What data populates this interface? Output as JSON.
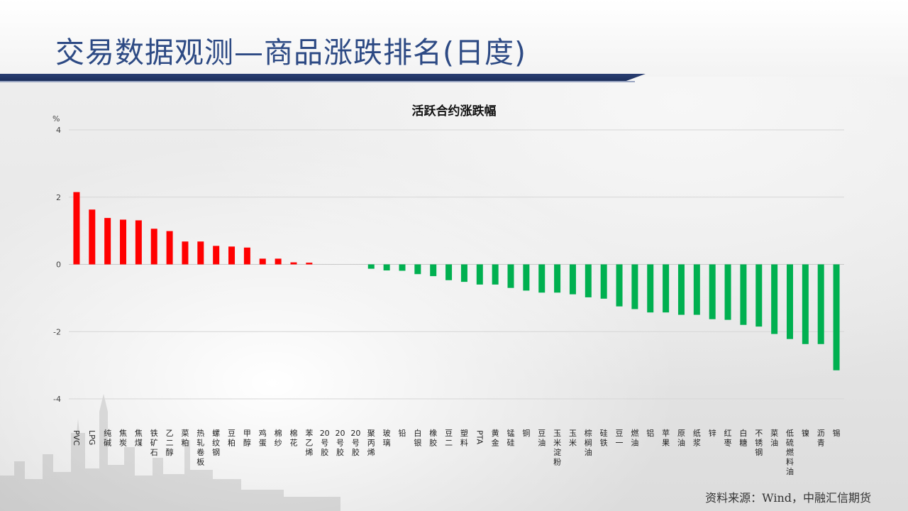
{
  "header": {
    "title": "交易数据观测—商品涨跌排名(日度)"
  },
  "footer": {
    "source": "资料来源：Wind，中融汇信期货"
  },
  "colors": {
    "positive": "#ff0000",
    "negative": "#00b050",
    "title": "#2d4a84",
    "band": "#1d2f5c"
  },
  "chart_data": {
    "type": "bar",
    "title": "活跃合约涨跌幅",
    "ylabel": "%",
    "ylim": [
      -4,
      4
    ],
    "yticks": [
      4,
      2,
      0,
      -2,
      -4
    ],
    "grid": true,
    "categories": [
      "PVC",
      "LPG",
      "纯碱",
      "焦炭",
      "焦煤",
      "铁矿石",
      "乙二醇",
      "菜粕",
      "热轧卷板",
      "螺纹钢",
      "豆粕",
      "甲醇",
      "鸡蛋",
      "棉纱",
      "棉花",
      "苯乙烯",
      "20号胶",
      "20号胶",
      "20号胶",
      "聚丙烯",
      "玻璃",
      "铅",
      "白银",
      "橡胶",
      "豆二",
      "塑料",
      "PTA",
      "黄金",
      "锰硅",
      "铜",
      "豆油",
      "玉米淀粉",
      "玉米",
      "棕榈油",
      "硅铁",
      "豆一",
      "燃油",
      "铝",
      "苹果",
      "原油",
      "纸浆",
      "锌",
      "红枣",
      "白糖",
      "不锈钢",
      "菜油",
      "低硫燃料油",
      "镍",
      "沥青",
      "锡"
    ],
    "values": [
      2.15,
      1.63,
      1.38,
      1.33,
      1.31,
      1.06,
      0.99,
      0.68,
      0.68,
      0.55,
      0.53,
      0.5,
      0.17,
      0.17,
      0.06,
      0.05,
      0,
      0,
      0,
      -0.13,
      -0.18,
      -0.19,
      -0.29,
      -0.35,
      -0.47,
      -0.52,
      -0.6,
      -0.6,
      -0.7,
      -0.78,
      -0.84,
      -0.84,
      -0.89,
      -0.98,
      -1.02,
      -1.25,
      -1.33,
      -1.43,
      -1.43,
      -1.5,
      -1.5,
      -1.63,
      -1.65,
      -1.8,
      -1.85,
      -2.07,
      -2.22,
      -2.37,
      -2.37,
      -3.15
    ]
  }
}
